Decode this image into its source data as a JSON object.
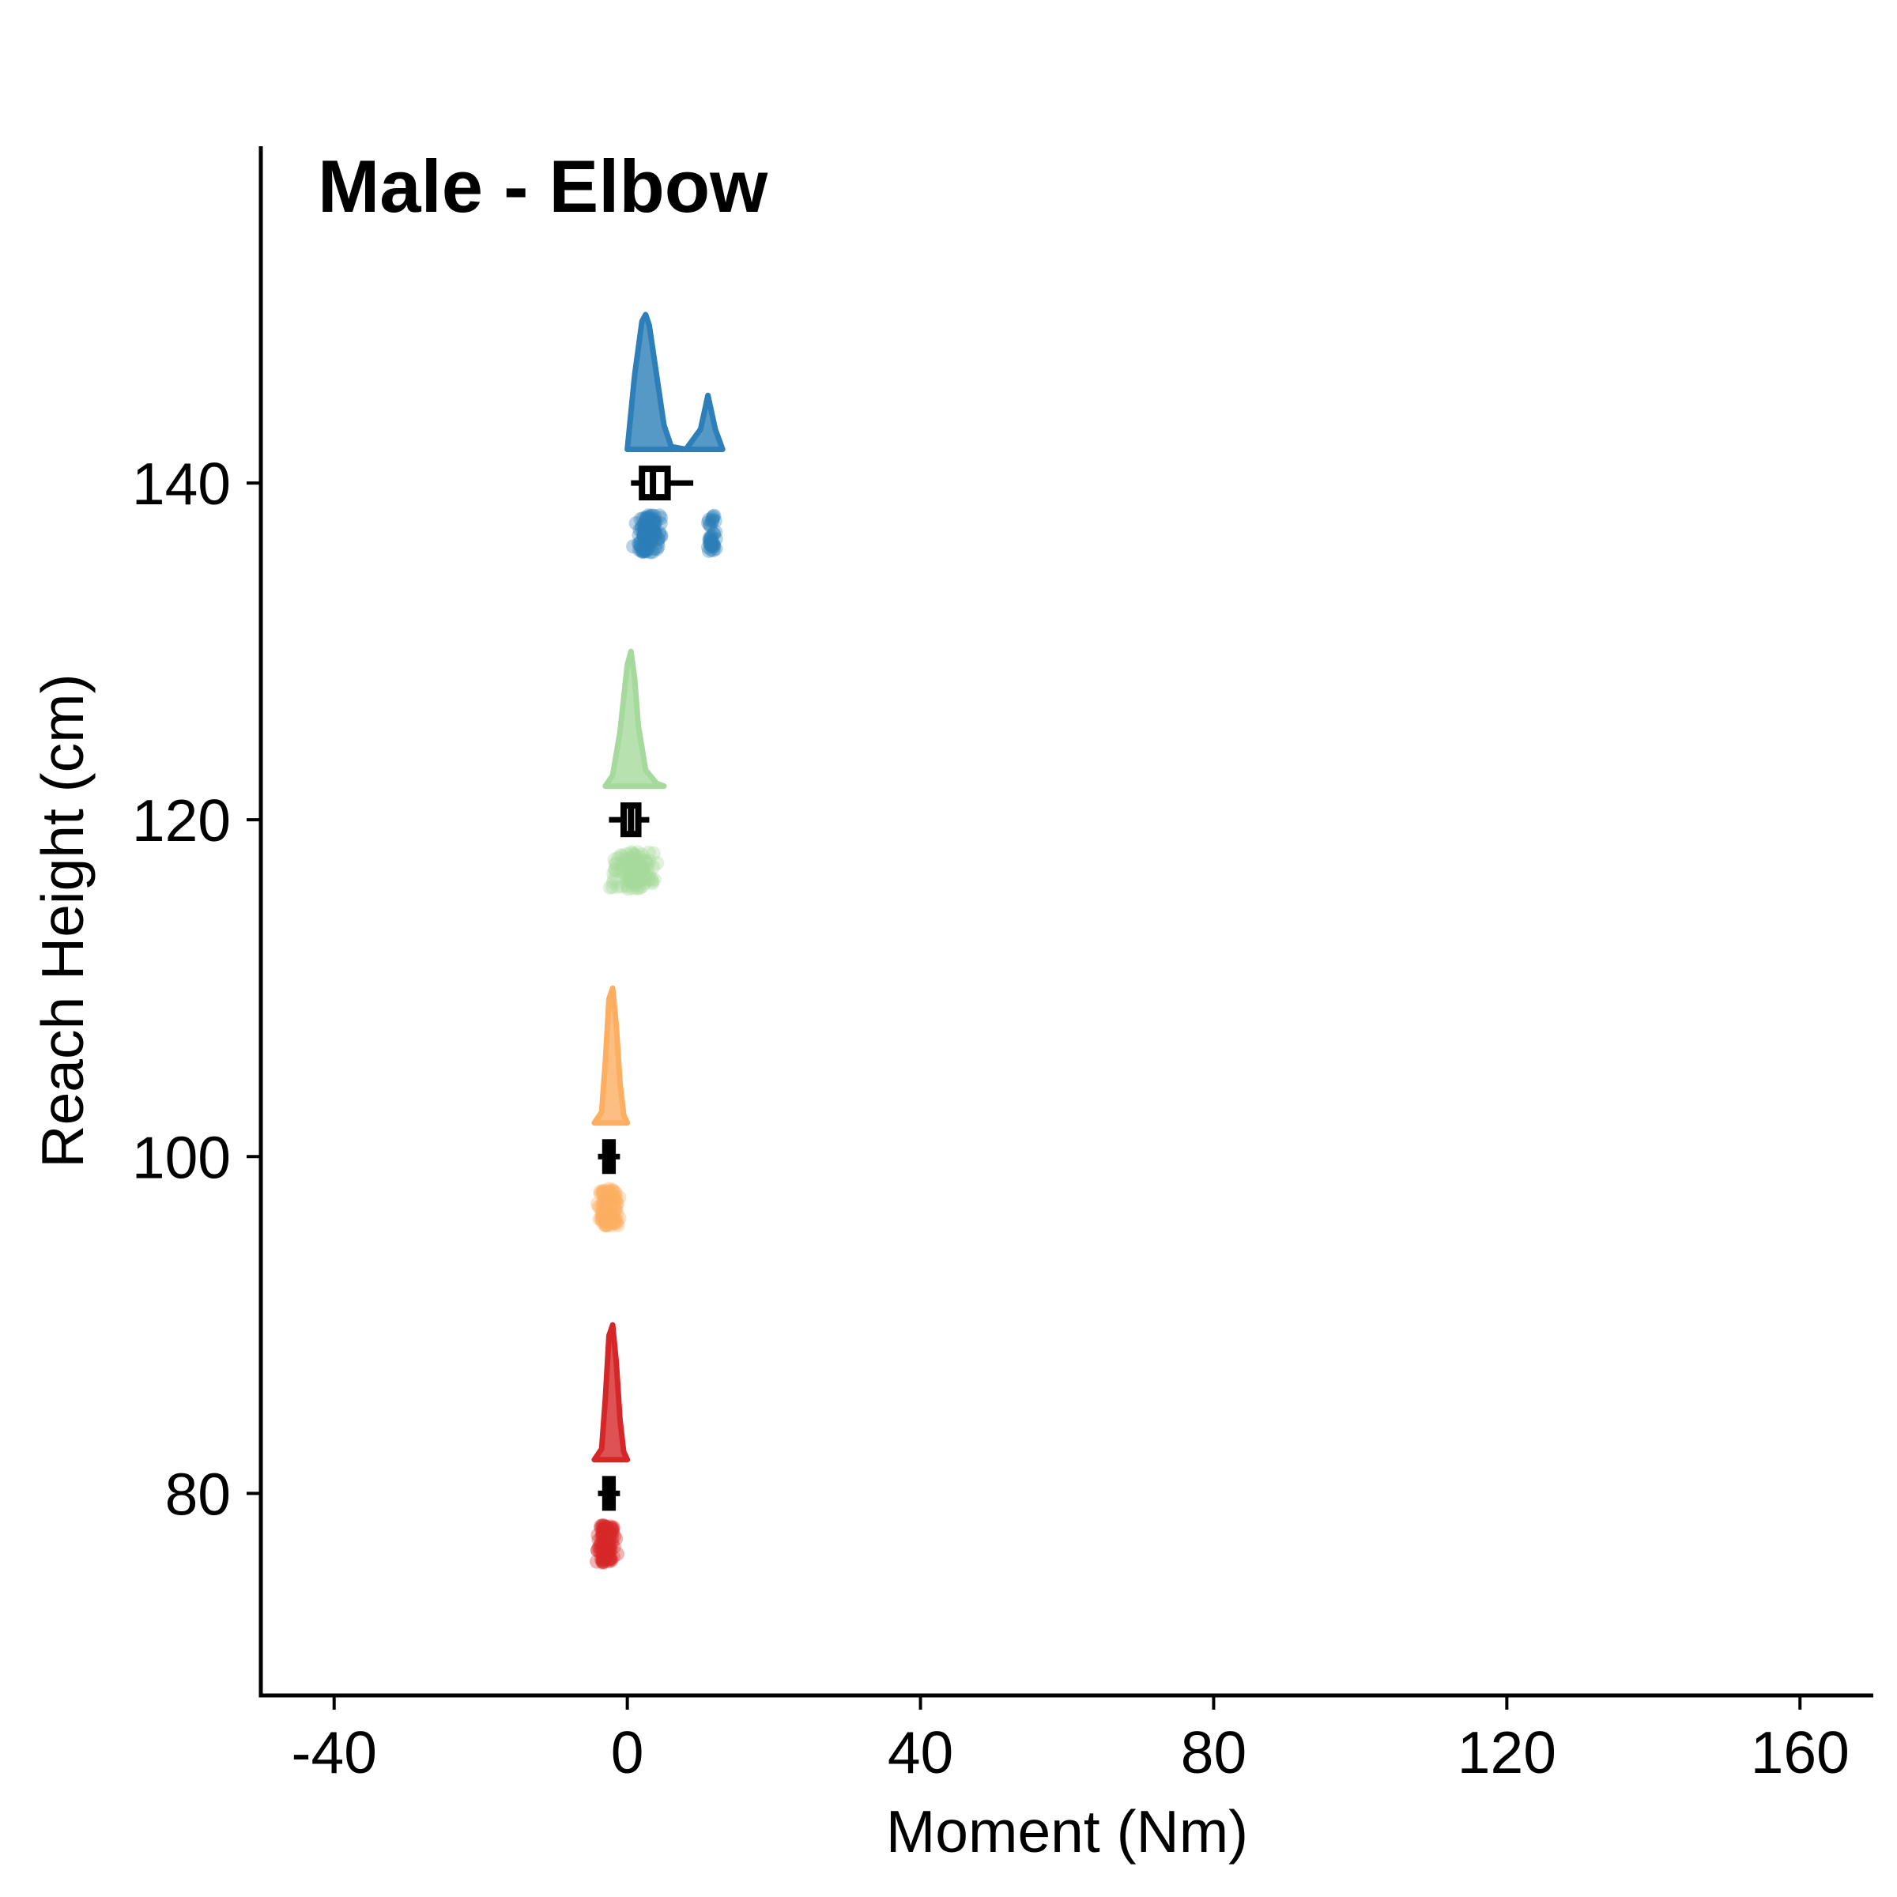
{
  "chart_data": {
    "type": "raincloud",
    "title": "Male - Elbow",
    "xlabel": "Moment (Nm)",
    "ylabel": "Reach Height (cm)",
    "xlim": [
      -50,
      170
    ],
    "ylim": [
      68,
      160
    ],
    "xticks": [
      -40,
      0,
      40,
      80,
      120,
      160
    ],
    "xtick_labels": [
      "-40",
      "0",
      "40",
      "80",
      "120",
      "160"
    ],
    "yticks": [
      80,
      100,
      120,
      140
    ],
    "ytick_labels": [
      "80",
      "100",
      "120",
      "140"
    ],
    "grid": false,
    "legend": "none",
    "series": [
      {
        "reach_height": 80,
        "color": "#d62728",
        "density_x": [
          -4.5,
          -3.5,
          -3,
          -2.5,
          -2,
          -1.5,
          -1,
          -0.5,
          0
        ],
        "density_h": [
          0,
          0.08,
          0.45,
          0.92,
          1.0,
          0.72,
          0.3,
          0.06,
          0
        ],
        "box": {
          "q1": -3.0,
          "median": -2.5,
          "q3": -2.0,
          "whisker_low": -4.0,
          "whisker_high": -1.0
        },
        "points_range": [
          -4.5,
          -1.0
        ]
      },
      {
        "reach_height": 100,
        "color": "#fdae61",
        "density_x": [
          -4.5,
          -3.5,
          -3,
          -2.5,
          -2,
          -1.5,
          -1,
          -0.5,
          0
        ],
        "density_h": [
          0,
          0.08,
          0.45,
          0.92,
          1.0,
          0.72,
          0.3,
          0.06,
          0
        ],
        "box": {
          "q1": -3.0,
          "median": -2.5,
          "q3": -2.0,
          "whisker_low": -4.0,
          "whisker_high": -1.0
        },
        "points_range": [
          -4.5,
          -0.5
        ]
      },
      {
        "reach_height": 120,
        "color": "#a6d99c",
        "density_x": [
          -3,
          -2,
          -1,
          0,
          0.5,
          1,
          1.5,
          2.5,
          4,
          5
        ],
        "density_h": [
          0,
          0.08,
          0.4,
          0.9,
          1.0,
          0.8,
          0.45,
          0.12,
          0.02,
          0
        ],
        "box": {
          "q1": -0.5,
          "median": 0.5,
          "q3": 1.5,
          "whisker_low": -2.5,
          "whisker_high": 3.0
        },
        "points_range": [
          -3.0,
          5.0
        ]
      },
      {
        "reach_height": 140,
        "color": "#2c7fb8",
        "density_x": [
          0,
          1,
          2,
          2.5,
          3,
          4,
          5,
          6,
          8,
          10,
          11,
          12,
          13
        ],
        "density_h": [
          0,
          0.55,
          0.95,
          1.0,
          0.92,
          0.55,
          0.18,
          0.02,
          0.0,
          0.15,
          0.4,
          0.15,
          0
        ],
        "box": {
          "q1": 2.0,
          "median": 3.5,
          "q3": 5.5,
          "whisker_low": 0.5,
          "whisker_high": 9.0
        },
        "points_clusters": [
          [
            0.5,
            5.5
          ],
          [
            10.5,
            12.5
          ]
        ]
      }
    ]
  }
}
